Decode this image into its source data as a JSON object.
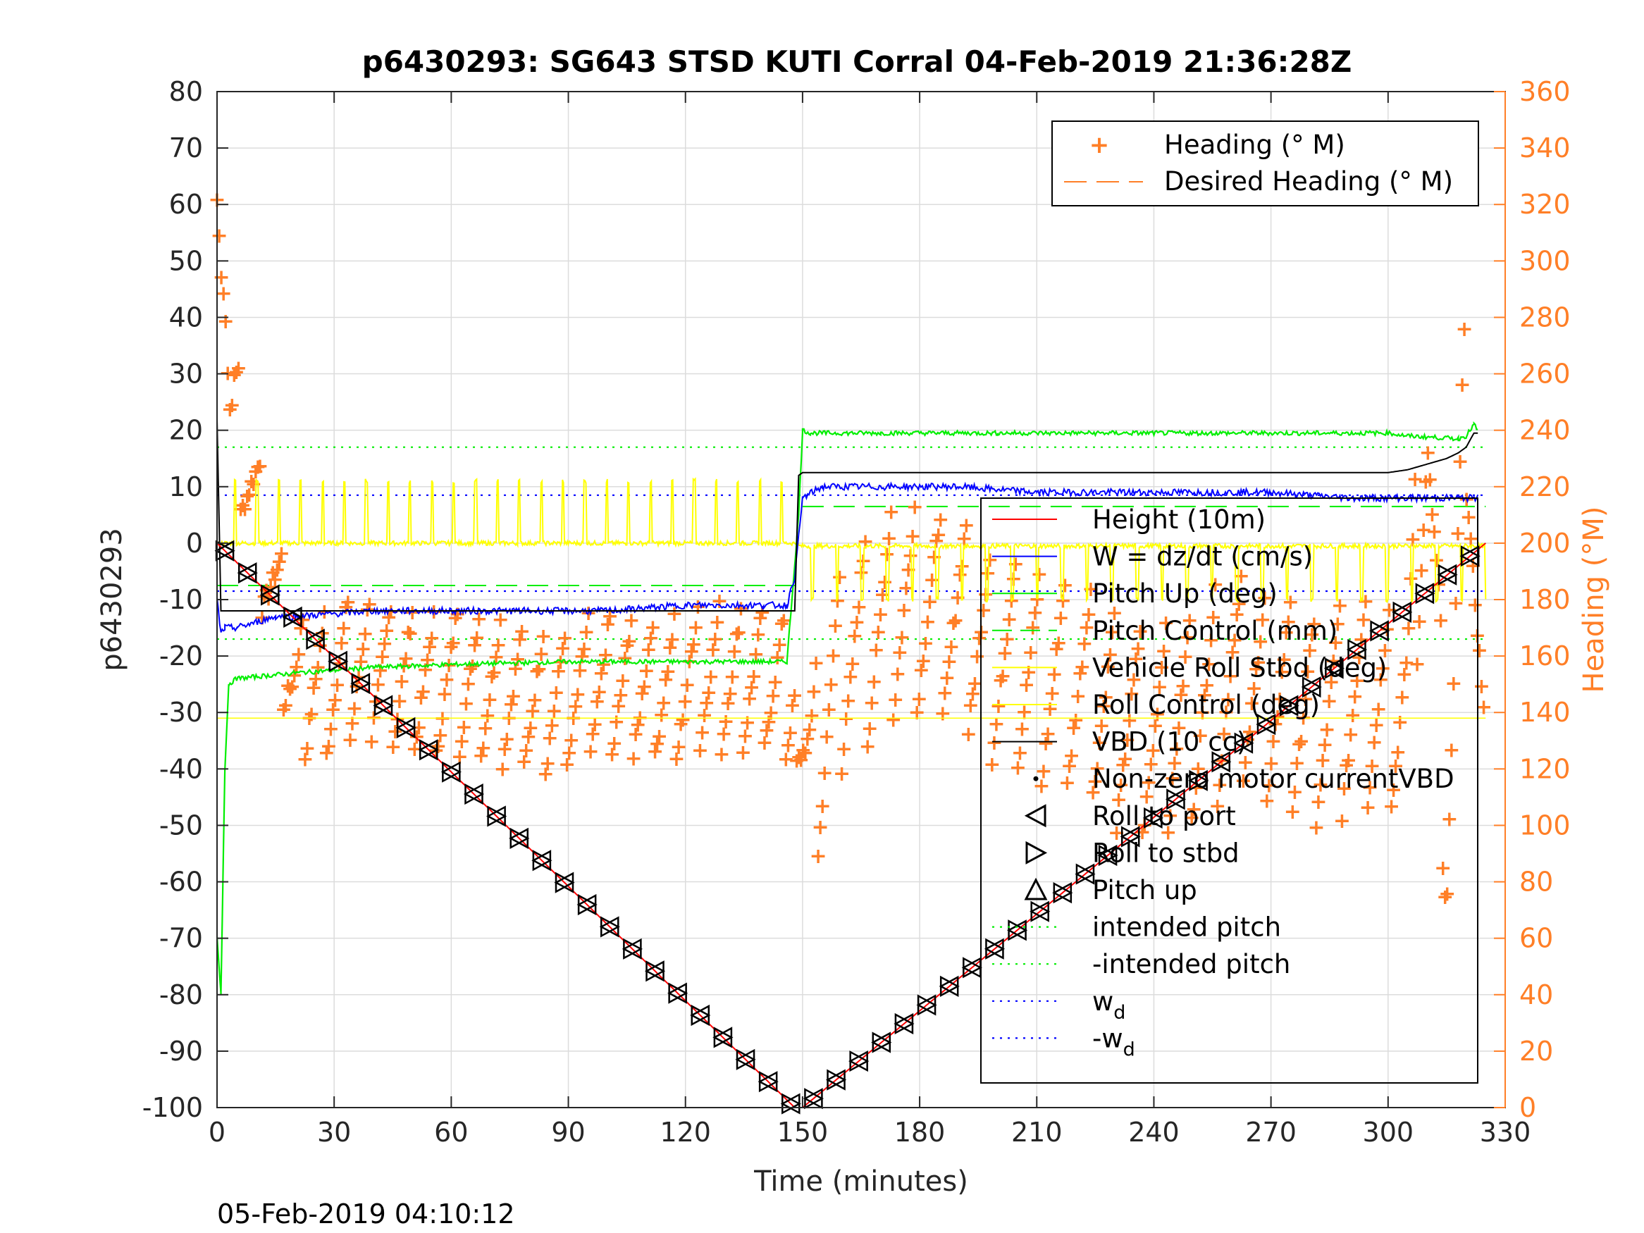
{
  "chart_data": {
    "type": "line",
    "title": "p6430293: SG643 STSD KUTI Corral 04-Feb-2019 21:36:28Z",
    "xlabel": "Time (minutes)",
    "ylabel": "p6430293",
    "y2label": "Heading (°M)",
    "footer_timestamp": "05-Feb-2019 04:10:12",
    "xlim": [
      0,
      330
    ],
    "ylim": [
      -100,
      80
    ],
    "y2lim": [
      0,
      360
    ],
    "xticks": [
      "0",
      "30",
      "60",
      "90",
      "120",
      "150",
      "180",
      "210",
      "240",
      "270",
      "300",
      "330"
    ],
    "yticks": [
      "80",
      "70",
      "60",
      "50",
      "40",
      "30",
      "20",
      "10",
      "0",
      "-10",
      "-20",
      "-30",
      "-40",
      "-50",
      "-60",
      "-70",
      "-80",
      "-90",
      "-100"
    ],
    "y2ticks": [
      "360",
      "340",
      "320",
      "300",
      "280",
      "260",
      "240",
      "220",
      "200",
      "180",
      "160",
      "140",
      "120",
      "100",
      "80",
      "60",
      "40",
      "20",
      "0"
    ],
    "grid": true,
    "colors": {
      "height": "#ff0000",
      "w": "#0000ff",
      "pitch": "#00ee00",
      "roll": "#ffff00",
      "vbd": "#000000",
      "heading": "#ff7f27",
      "markers": "#000000"
    },
    "legend_heading": {
      "placement": "top-right",
      "entries": [
        "Heading (° M)",
        "Desired Heading (° M)"
      ]
    },
    "legend_main": {
      "placement": "bottom-right",
      "entries": [
        {
          "label": "Height (10m)"
        },
        {
          "label": "W = dz/dt (cm/s)"
        },
        {
          "label": "Pitch Up (deg)"
        },
        {
          "label": "Pitch Control (mm)"
        },
        {
          "label": "Vehicle Roll Stbd (deg)"
        },
        {
          "label": "Roll Control (deg)"
        },
        {
          "label": "VBD (10 cc)"
        },
        {
          "label": "Non-zero motor currentVBD"
        },
        {
          "label": "Roll to port"
        },
        {
          "label": "Roll to stbd"
        },
        {
          "label": "Pitch up"
        },
        {
          "label": "intended pitch"
        },
        {
          "label": "-intended pitch"
        },
        {
          "label": "w",
          "sub": "d"
        },
        {
          "label": "-w",
          "sub": "d"
        }
      ]
    },
    "series": [
      {
        "name": "Height (10m)",
        "x": [
          0,
          148,
          150,
          325
        ],
        "y": [
          0,
          -100,
          -100,
          0
        ]
      },
      {
        "name": "W = dz/dt (cm/s)",
        "x": [
          0,
          1,
          2,
          5,
          10,
          15,
          20,
          40,
          60,
          80,
          100,
          120,
          140,
          146,
          148,
          150,
          155,
          170,
          190,
          210,
          230,
          250,
          270,
          290,
          310,
          323
        ],
        "y": [
          -10,
          -16,
          -15,
          -15,
          -14,
          -13,
          -13,
          -12,
          -12,
          -12,
          -12,
          -11,
          -11,
          -11,
          -6,
          8,
          10,
          10,
          10,
          9,
          9,
          9,
          9,
          8,
          8,
          8
        ]
      },
      {
        "name": "Pitch Up (deg)",
        "x": [
          0,
          1,
          2,
          3,
          5,
          20,
          40,
          60,
          90,
          120,
          146,
          149,
          150,
          152,
          170,
          200,
          250,
          300,
          305,
          318,
          320,
          322,
          323
        ],
        "y": [
          -70,
          -80,
          -40,
          -25,
          -24,
          -23,
          -22,
          -21.5,
          -21,
          -21,
          -21,
          5,
          20,
          19.5,
          19.5,
          19.5,
          19.5,
          19.5,
          19,
          18.5,
          19,
          21,
          20
        ]
      },
      {
        "name": "VBD (10 cc)",
        "x": [
          0,
          1,
          2,
          148,
          149,
          150,
          300,
          305,
          310,
          315,
          318,
          320,
          322,
          323
        ],
        "y": [
          22,
          -12,
          -12,
          -12,
          12,
          12.5,
          12.5,
          13,
          14,
          15,
          16,
          17,
          19.5,
          19.5
        ]
      },
      {
        "name": "Roll Control (deg)",
        "x": [
          0,
          148,
          150,
          325
        ],
        "y": [
          -31,
          -31,
          -31,
          -31
        ]
      },
      {
        "name": "Heading (° M)",
        "x": [
          0,
          1,
          2,
          3,
          20,
          40,
          60,
          80,
          100,
          120,
          140,
          148,
          152,
          160,
          170,
          180,
          200,
          220,
          240,
          260,
          280,
          300,
          305,
          310,
          315,
          320,
          325
        ],
        "y2": [
          322,
          298,
          286,
          252,
          150,
          155,
          150,
          145,
          148,
          150,
          152,
          150,
          112,
          160,
          170,
          180,
          160,
          150,
          130,
          150,
          140,
          145,
          150,
          240,
          90,
          260,
          110
        ]
      },
      {
        "name": "Desired Heading (° M)",
        "x": [
          0,
          148,
          150,
          325
        ],
        "y2": [
          185,
          185,
          213,
          213
        ]
      },
      {
        "name": "intended pitch",
        "x": [
          0,
          325
        ],
        "y": [
          17,
          17
        ]
      },
      {
        "name": "-intended pitch",
        "x": [
          0,
          325
        ],
        "y": [
          -17,
          -17
        ]
      },
      {
        "name": "w_d",
        "x": [
          0,
          325
        ],
        "y": [
          8.5,
          8.5
        ]
      },
      {
        "name": "-w_d",
        "x": [
          0,
          325
        ],
        "y": [
          -8.5,
          -8.5
        ]
      }
    ]
  }
}
